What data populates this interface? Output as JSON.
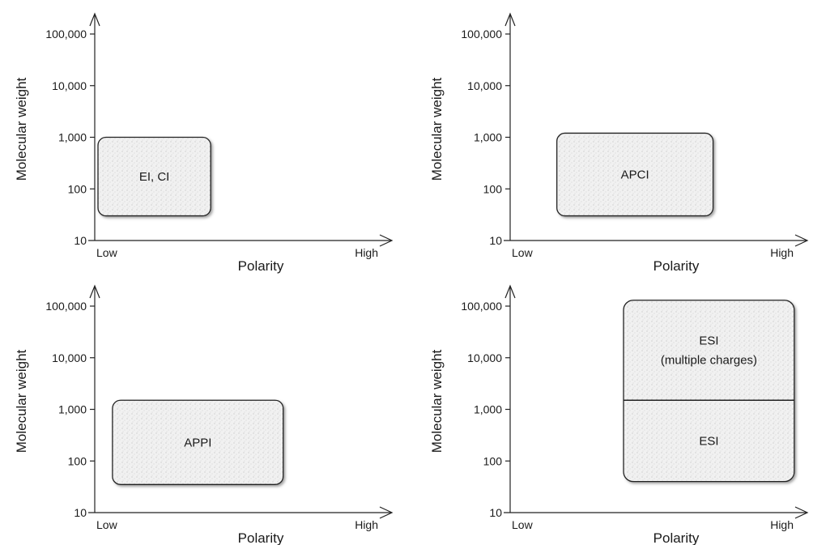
{
  "panels": [
    {
      "ylabel": "Molecular weight",
      "xlabel": "Polarity",
      "x_low": "Low",
      "x_high": "High",
      "y_ticks": [
        "100,000",
        "10,000",
        "1,000",
        "100",
        "10"
      ],
      "regions": [
        {
          "label": "EI, CI",
          "polarity_range": [
            0.0,
            0.4
          ],
          "mw_range": [
            30,
            1000
          ]
        }
      ]
    },
    {
      "ylabel": "Molecular weight",
      "xlabel": "Polarity",
      "x_low": "Low",
      "x_high": "High",
      "y_ticks": [
        "100,000",
        "10,000",
        "1,000",
        "100",
        "10"
      ],
      "regions": [
        {
          "label": "APCI",
          "polarity_range": [
            0.15,
            0.7
          ],
          "mw_range": [
            30,
            1200
          ]
        }
      ]
    },
    {
      "ylabel": "Molecular weight",
      "xlabel": "Polarity",
      "x_low": "Low",
      "x_high": "High",
      "y_ticks": [
        "100,000",
        "10,000",
        "1,000",
        "100",
        "10"
      ],
      "regions": [
        {
          "label": "APPI",
          "polarity_range": [
            0.05,
            0.65
          ],
          "mw_range": [
            35,
            1500
          ]
        }
      ]
    },
    {
      "ylabel": "Molecular weight",
      "xlabel": "Polarity",
      "x_low": "Low",
      "x_high": "High",
      "y_ticks": [
        "100,000",
        "10,000",
        "1,000",
        "100",
        "10"
      ],
      "regions": [
        {
          "label": "ESI\n(multiple charges)",
          "polarity_range": [
            0.38,
            0.98
          ],
          "mw_range": [
            1500,
            130000
          ]
        },
        {
          "label": "ESI",
          "polarity_range": [
            0.38,
            0.98
          ],
          "mw_range": [
            40,
            1500
          ]
        }
      ]
    }
  ]
}
